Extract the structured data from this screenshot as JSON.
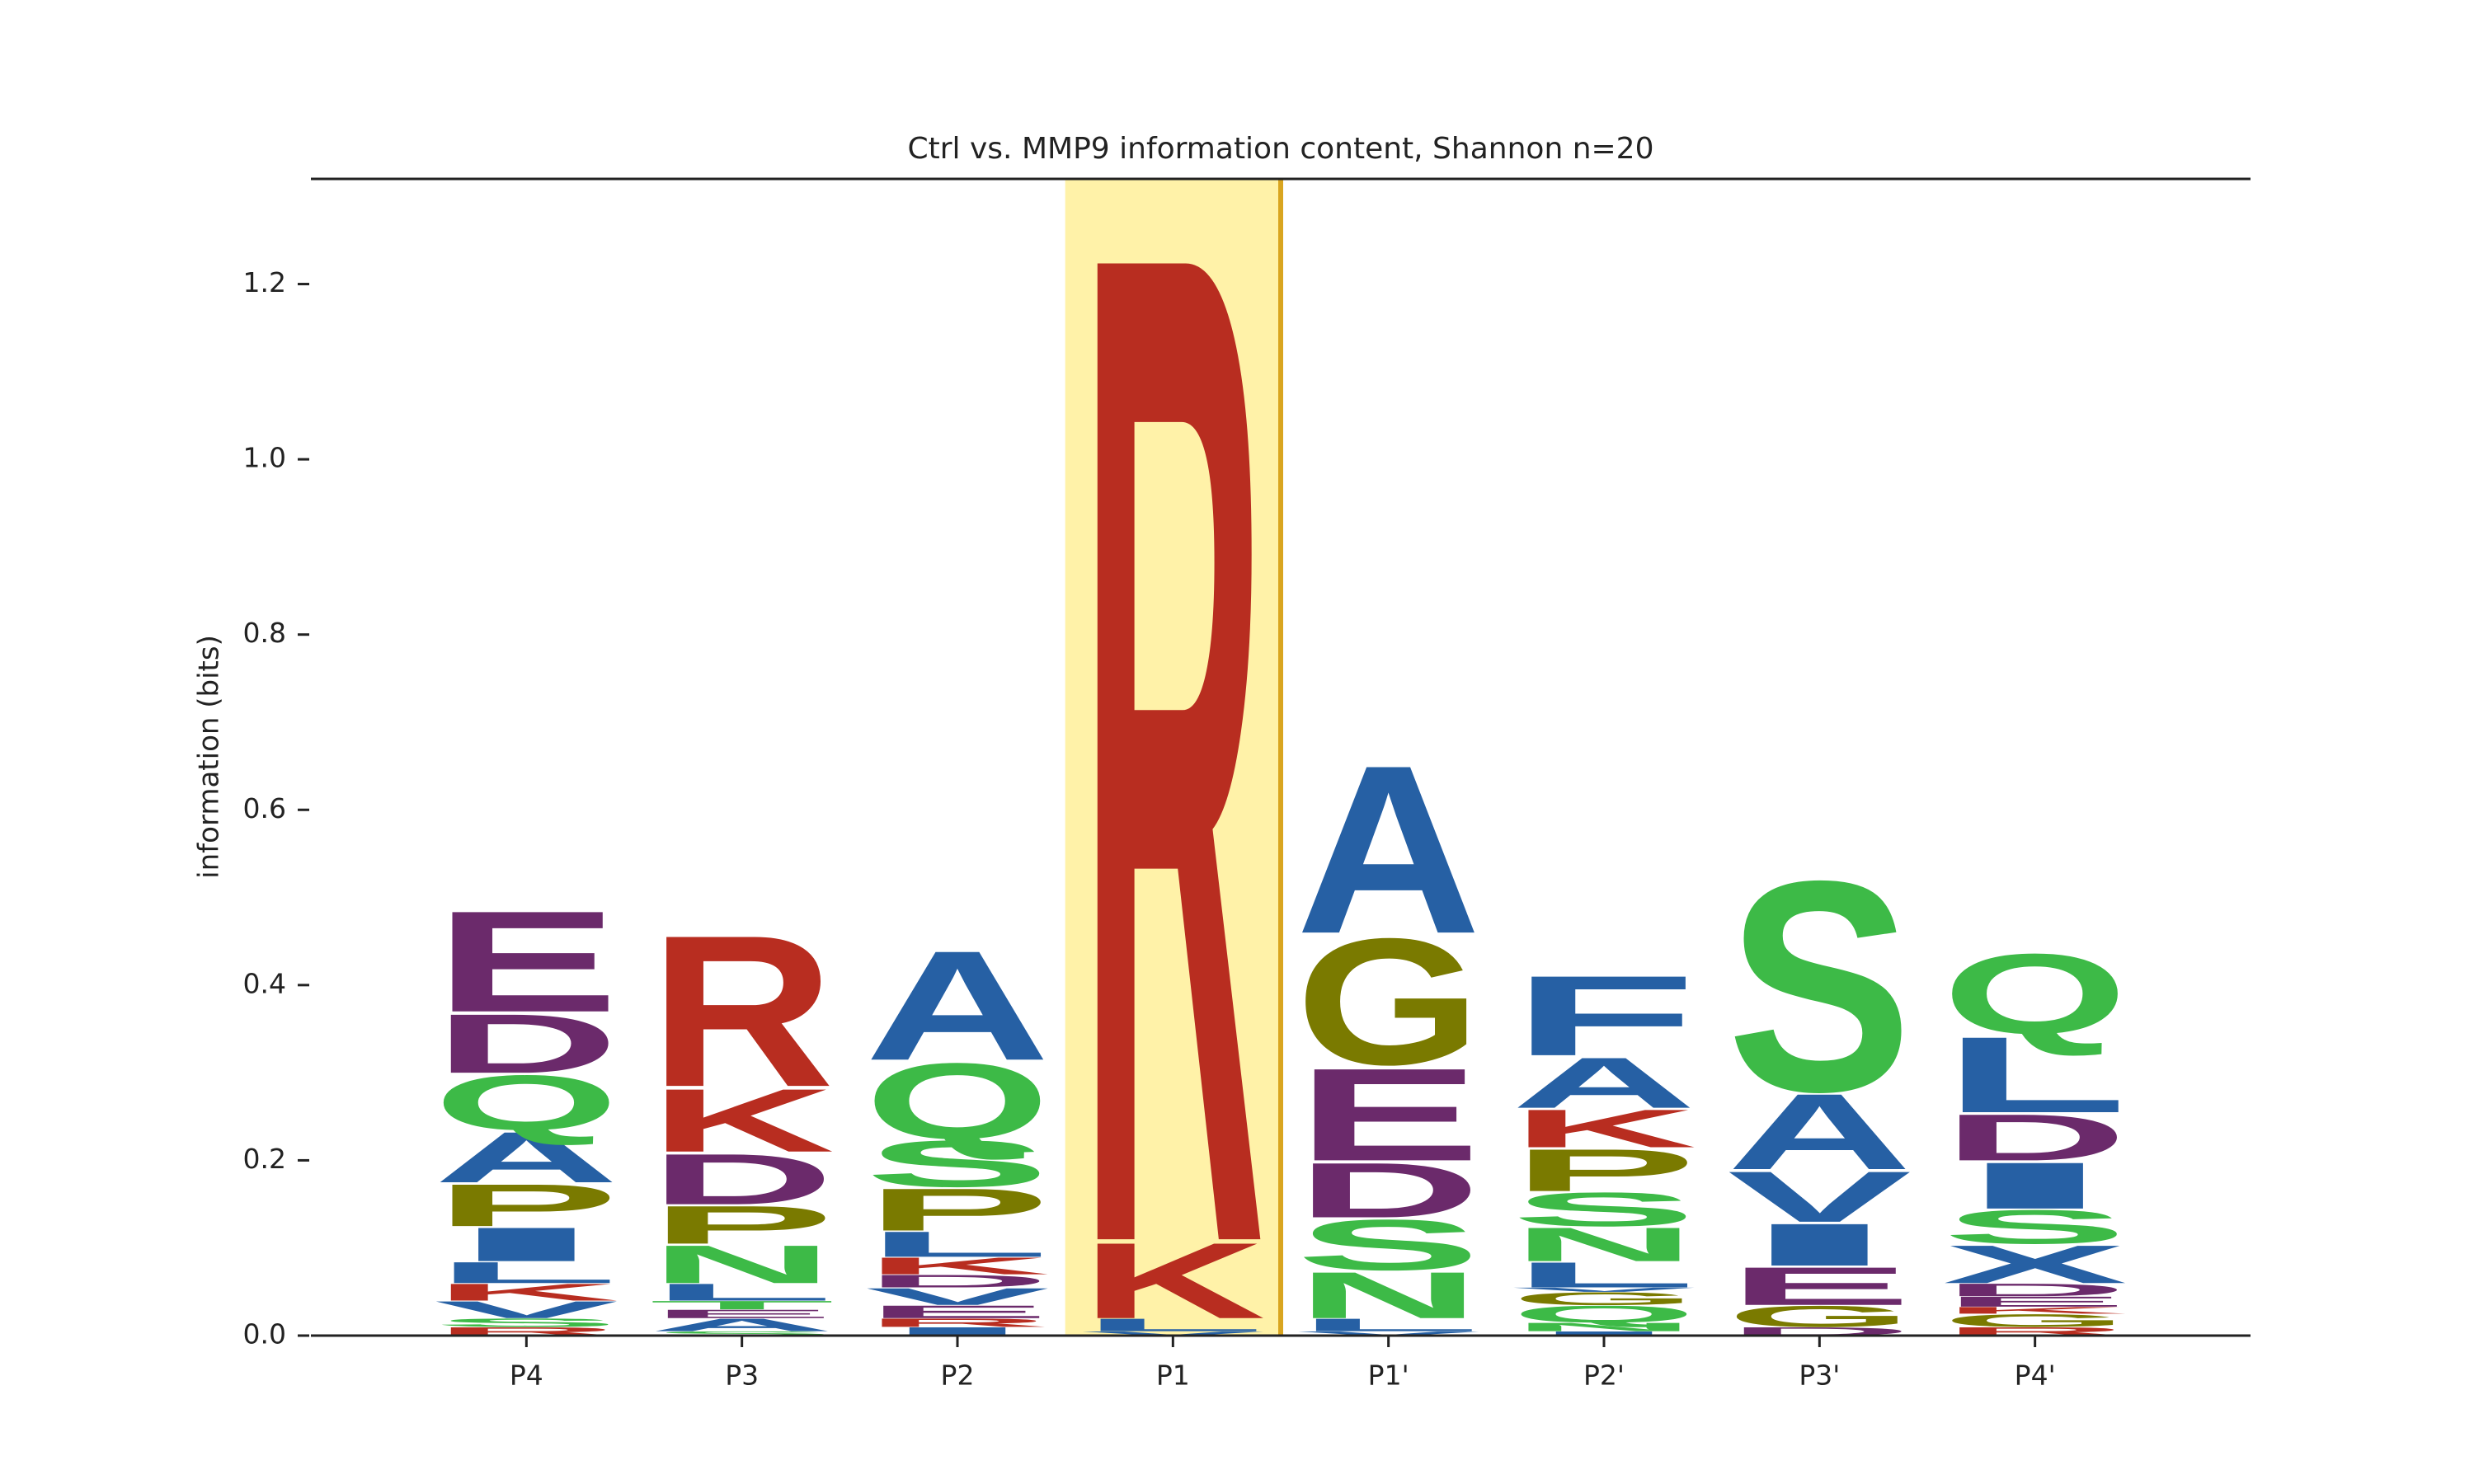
{
  "chart_data": {
    "type": "logo",
    "title": "Ctrl vs. MMP9 information content, Shannon n=20",
    "ylabel": "information (bits)",
    "ylim": [
      0,
      1.32
    ],
    "yticks": [
      {
        "value": 0,
        "label": "0.0"
      },
      0.2,
      0.4,
      0.6,
      0.8,
      {
        "value": 1,
        "label": "1.0"
      },
      1.2
    ],
    "xlim": [
      -1,
      8
    ],
    "categories": [
      "P4",
      "P3",
      "P2",
      "P1",
      "P1'",
      "P2'",
      "P3'",
      "P4'"
    ],
    "highlight": {
      "index": 3,
      "color": "#fff2a8",
      "edge_color": "#d9a520"
    },
    "letter_colors": {
      "A": "#2660a4",
      "F": "#2660a4",
      "I": "#2660a4",
      "L": "#2660a4",
      "V": "#2660a4",
      "X": "#2660a4",
      "R": "#b82d20",
      "K": "#b82d20",
      "S": "#3dba47",
      "N": "#3dba47",
      "Q": "#3dba47",
      "T": "#3dba47",
      "D": "#6b2a6b",
      "E": "#6b2a6b",
      "G": "#7a7a00",
      "P": "#7a7a00"
    },
    "stacks": [
      [
        {
          "letter": "R",
          "value": 0.01
        },
        {
          "letter": "S",
          "value": 0.01
        },
        {
          "letter": "V",
          "value": 0.02
        },
        {
          "letter": "K",
          "value": 0.02
        },
        {
          "letter": "L",
          "value": 0.025
        },
        {
          "letter": "I",
          "value": 0.04
        },
        {
          "letter": "P",
          "value": 0.05
        },
        {
          "letter": "A",
          "value": 0.06
        },
        {
          "letter": "Q",
          "value": 0.065
        },
        {
          "letter": "D",
          "value": 0.07
        },
        {
          "letter": "E",
          "value": 0.12
        }
      ],
      [
        {
          "letter": "S",
          "value": 0.005
        },
        {
          "letter": "A",
          "value": 0.015
        },
        {
          "letter": "E",
          "value": 0.01
        },
        {
          "letter": "T",
          "value": 0.01
        },
        {
          "letter": "L",
          "value": 0.02
        },
        {
          "letter": "N",
          "value": 0.045
        },
        {
          "letter": "P",
          "value": 0.045
        },
        {
          "letter": "D",
          "value": 0.06
        },
        {
          "letter": "K",
          "value": 0.075
        },
        {
          "letter": "R",
          "value": 0.18
        }
      ],
      [
        {
          "letter": "I",
          "value": 0.01
        },
        {
          "letter": "R",
          "value": 0.01
        },
        {
          "letter": "E",
          "value": 0.015
        },
        {
          "letter": "V",
          "value": 0.02
        },
        {
          "letter": "D",
          "value": 0.015
        },
        {
          "letter": "K",
          "value": 0.02
        },
        {
          "letter": "L",
          "value": 0.03
        },
        {
          "letter": "P",
          "value": 0.05
        },
        {
          "letter": "S",
          "value": 0.055
        },
        {
          "letter": "Q",
          "value": 0.09
        },
        {
          "letter": "A",
          "value": 0.13
        }
      ],
      [
        {
          "letter": "V",
          "value": 0.005
        },
        {
          "letter": "L",
          "value": 0.015
        },
        {
          "letter": "K",
          "value": 0.09
        },
        {
          "letter": "R",
          "value": 1.18
        }
      ],
      [
        {
          "letter": "V",
          "value": 0.005
        },
        {
          "letter": "L",
          "value": 0.015
        },
        {
          "letter": "N",
          "value": 0.055
        },
        {
          "letter": "S",
          "value": 0.06
        },
        {
          "letter": "D",
          "value": 0.065
        },
        {
          "letter": "E",
          "value": 0.11
        },
        {
          "letter": "G",
          "value": 0.15
        },
        {
          "letter": "A",
          "value": 0.2
        }
      ],
      [
        {
          "letter": "I",
          "value": 0.005
        },
        {
          "letter": "N",
          "value": 0.01
        },
        {
          "letter": "Q",
          "value": 0.02
        },
        {
          "letter": "G",
          "value": 0.015
        },
        {
          "letter": "V",
          "value": 0.005
        },
        {
          "letter": "L",
          "value": 0.03
        },
        {
          "letter": "N",
          "value": 0.04
        },
        {
          "letter": "S",
          "value": 0.04
        },
        {
          "letter": "P",
          "value": 0.05
        },
        {
          "letter": "K",
          "value": 0.045
        },
        {
          "letter": "A",
          "value": 0.06
        },
        {
          "letter": "F",
          "value": 0.095
        }
      ],
      [
        {
          "letter": "D",
          "value": 0.01
        },
        {
          "letter": "G",
          "value": 0.025
        },
        {
          "letter": "E",
          "value": 0.045
        },
        {
          "letter": "I",
          "value": 0.05
        },
        {
          "letter": "V",
          "value": 0.06
        },
        {
          "letter": "A",
          "value": 0.09
        },
        {
          "letter": "S",
          "value": 0.25
        }
      ],
      [
        {
          "letter": "R",
          "value": 0.01
        },
        {
          "letter": "G",
          "value": 0.015
        },
        {
          "letter": "K",
          "value": 0.008
        },
        {
          "letter": "E",
          "value": 0.012
        },
        {
          "letter": "D",
          "value": 0.015
        },
        {
          "letter": "X",
          "value": 0.045
        },
        {
          "letter": "S",
          "value": 0.04
        },
        {
          "letter": "I",
          "value": 0.055
        },
        {
          "letter": "D",
          "value": 0.055
        },
        {
          "letter": "L",
          "value": 0.09
        },
        {
          "letter": "Q",
          "value": 0.095
        }
      ]
    ]
  }
}
